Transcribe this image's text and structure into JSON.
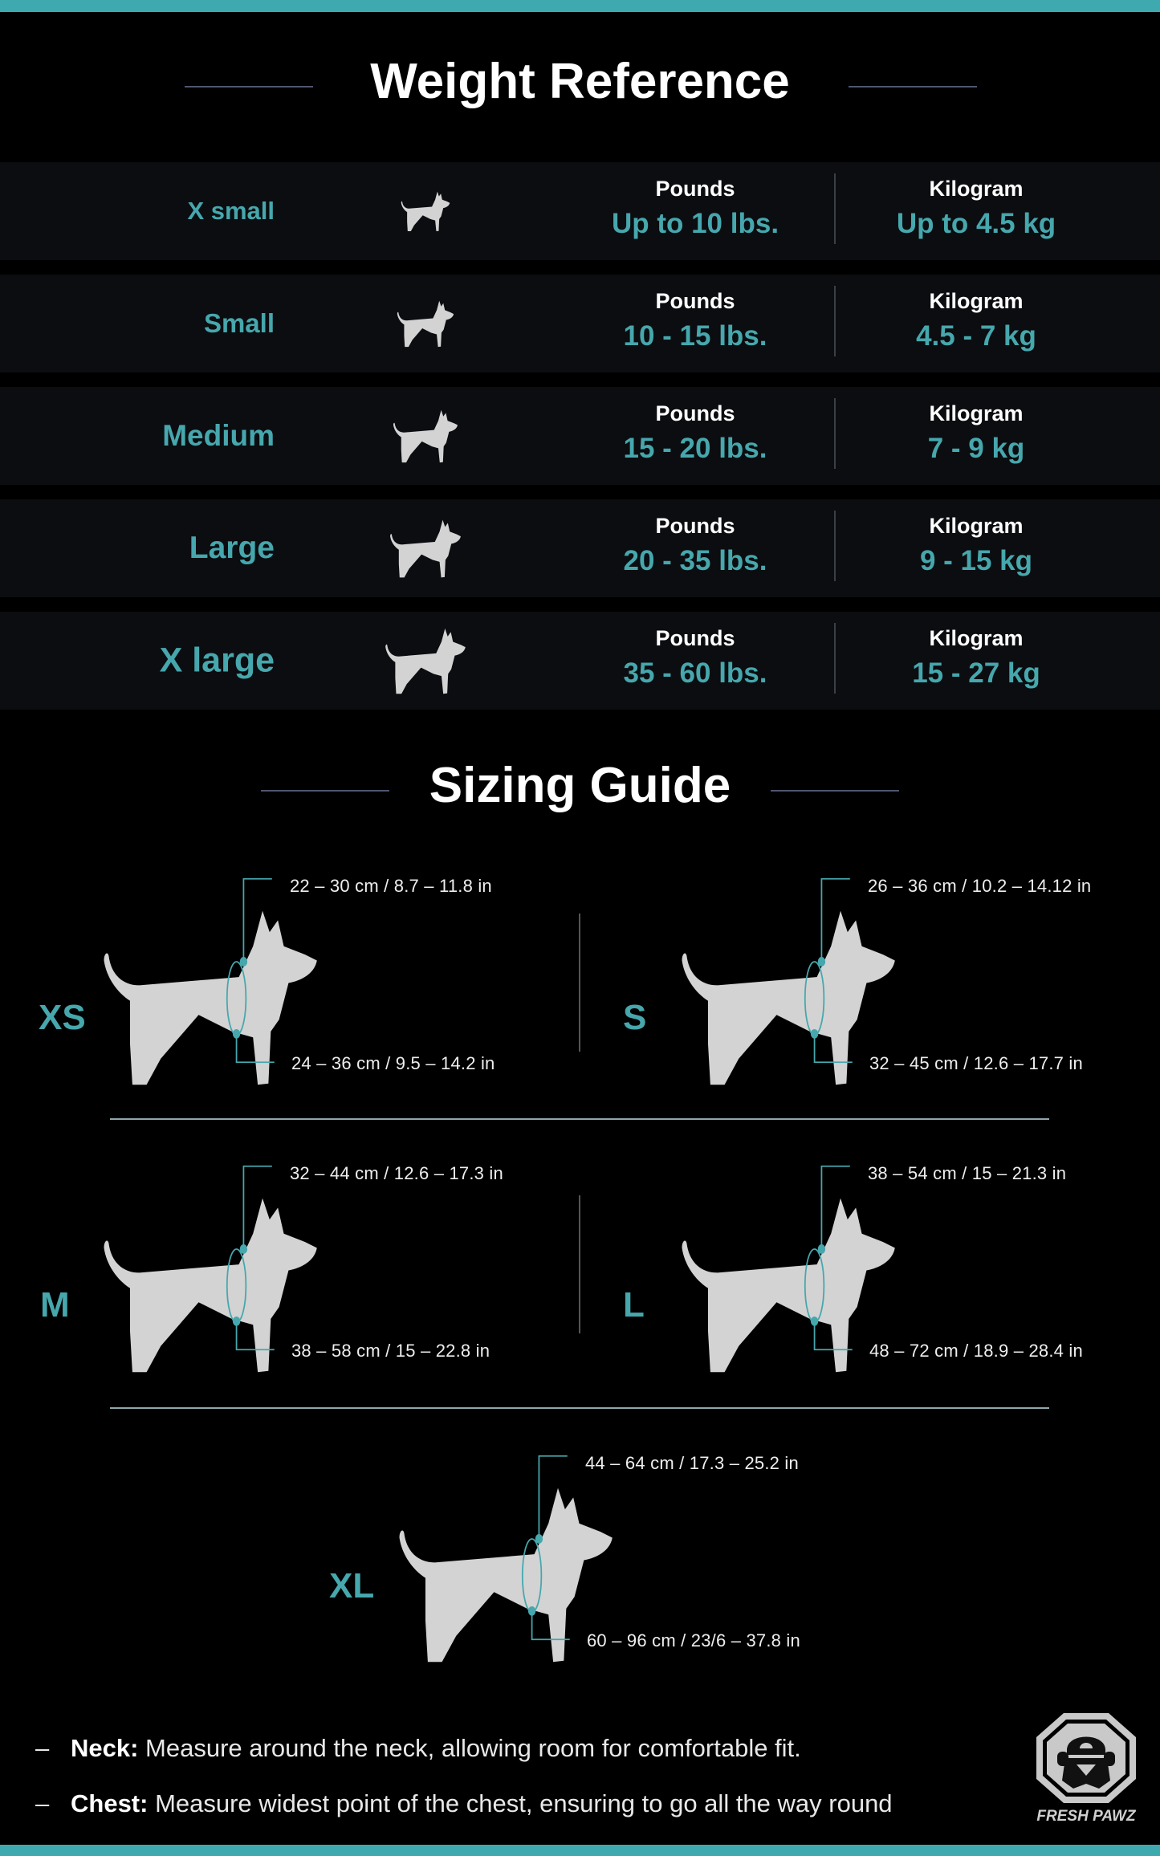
{
  "colors": {
    "accent": "#46a7ad",
    "bar": "#3fa9b0",
    "silhouette": "#d3d3d3",
    "row_bg": "#0b0d10"
  },
  "weight_reference": {
    "title": "Weight Reference",
    "rows": [
      {
        "size": "X small",
        "pounds_label": "Pounds",
        "pounds": "Up to 10 lbs.",
        "kg_label": "Kilogram",
        "kg": "Up to 4.5 kg",
        "icon": "dog-icon"
      },
      {
        "size": "Small",
        "pounds_label": "Pounds",
        "pounds": "10 - 15 lbs.",
        "kg_label": "Kilogram",
        "kg": "4.5 - 7 kg",
        "icon": "dog-icon"
      },
      {
        "size": "Medium",
        "pounds_label": "Pounds",
        "pounds": "15 - 20 lbs.",
        "kg_label": "Kilogram",
        "kg": "7 - 9 kg",
        "icon": "dog-icon"
      },
      {
        "size": "Large",
        "pounds_label": "Pounds",
        "pounds": "20 - 35 lbs.",
        "kg_label": "Kilogram",
        "kg": "9 - 15 kg",
        "icon": "dog-icon"
      },
      {
        "size": "X large",
        "pounds_label": "Pounds",
        "pounds": "35 - 60 lbs.",
        "kg_label": "Kilogram",
        "kg": "15 - 27 kg",
        "icon": "dog-icon"
      }
    ]
  },
  "sizing_guide": {
    "title": "Sizing Guide",
    "sizes": [
      {
        "label": "XS",
        "neck": "22 – 30 cm / 8.7 – 11.8 in",
        "chest": "24 – 36 cm / 9.5 – 14.2 in"
      },
      {
        "label": "S",
        "neck": "26 – 36 cm / 10.2 – 14.12 in",
        "chest": "32 – 45 cm / 12.6 – 17.7 in"
      },
      {
        "label": "M",
        "neck": "32 – 44 cm / 12.6 – 17.3 in",
        "chest": "38 – 58 cm / 15 – 22.8 in"
      },
      {
        "label": "L",
        "neck": "38 – 54 cm / 15 – 21.3 in",
        "chest": "48 – 72 cm / 18.9 – 28.4 in"
      },
      {
        "label": "XL",
        "neck": "44 – 64 cm / 17.3 – 25.2 in",
        "chest": "60 – 96 cm / 23/6 – 37.8 in"
      }
    ]
  },
  "notes": [
    {
      "dash": "–",
      "term": "Neck:",
      "text": " Measure around the neck, allowing room for comfortable fit."
    },
    {
      "dash": "–",
      "term": "Chest:",
      "text": " Measure widest point of the chest, ensuring to go all the way round"
    }
  ],
  "logo": {
    "text": "FRESH PAWZ",
    "icon": "octagon-dog-logo"
  }
}
